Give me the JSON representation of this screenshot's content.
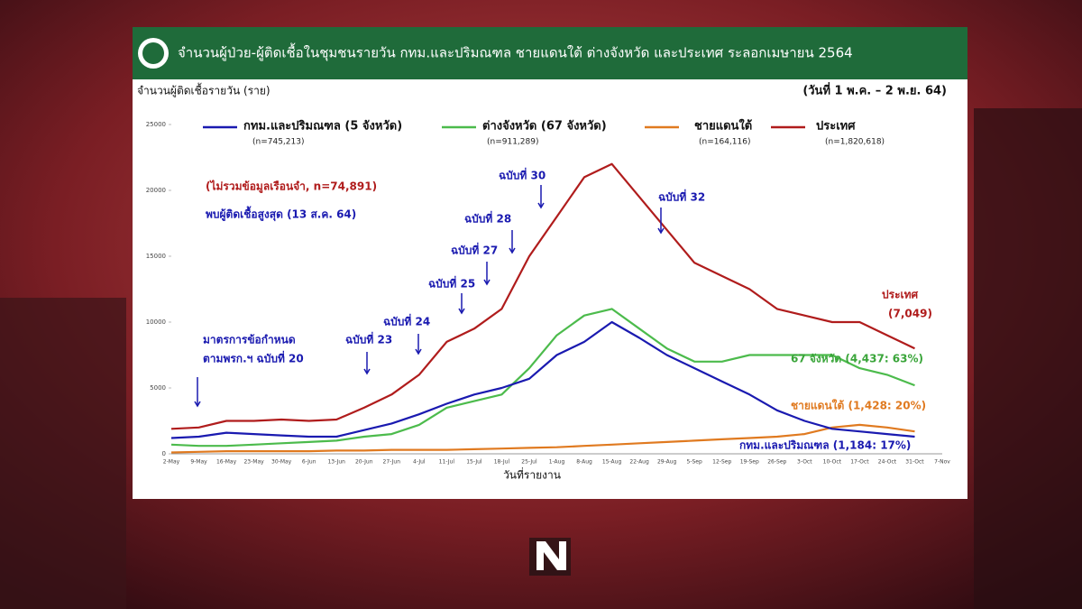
{
  "chart_data": {
    "type": "line",
    "title": "จำนวนผู้ป่วย-ผู้ติดเชื้อในชุมชนรายวัน กทม.และปริมณฑล ชายแดนใต้ ต่างจังหวัด และประเทศ ระลอกเมษายน 2564",
    "ylabel": "จำนวนผู้ติดเชื้อรายวัน (ราย)",
    "subtitle": "(วันที่ 1 พ.ค. – 2 พ.ย. 64)",
    "xlabel": "วันที่รายงาน",
    "categories": [
      "2-May",
      "9-May",
      "16-May",
      "23-May",
      "30-May",
      "6-Jun",
      "13-Jun",
      "20-Jun",
      "27-Jun",
      "4-Jul",
      "11-Jul",
      "15-Jul",
      "18-Jul",
      "25-Jul",
      "1-Aug",
      "8-Aug",
      "15-Aug",
      "22-Aug",
      "29-Aug",
      "5-Sep",
      "12-Sep",
      "19-Sep",
      "26-Sep",
      "3-Oct",
      "10-Oct",
      "17-Oct",
      "24-Oct",
      "31-Oct",
      "7-Nov"
    ],
    "ylim": [
      0,
      25000
    ],
    "yticks": [
      0,
      5000,
      10000,
      15000,
      20000,
      25000
    ],
    "series": [
      {
        "name": "กทม.และปริมณฑล (5 จังหวัด)",
        "n": "(n=745,213)",
        "color": "#1a1ab0",
        "values": [
          1200,
          1300,
          1600,
          1500,
          1400,
          1300,
          1300,
          1800,
          2300,
          3000,
          3800,
          4500,
          5000,
          5700,
          7500,
          8500,
          10000,
          8800,
          7500,
          6500,
          5500,
          4500,
          3300,
          2500,
          1900,
          1700,
          1500,
          1300,
          null
        ]
      },
      {
        "name": "ต่างจังหวัด (67 จังหวัด)",
        "n": "(n=911,289)",
        "color": "#4cbb4c",
        "values": [
          700,
          600,
          600,
          700,
          800,
          900,
          1000,
          1300,
          1500,
          2200,
          3500,
          4000,
          4500,
          6500,
          9000,
          10500,
          11000,
          9500,
          8000,
          7000,
          7000,
          7500,
          7500,
          7500,
          7500,
          6500,
          6000,
          5200,
          null
        ]
      },
      {
        "name": "ชายแดนใต้",
        "n": "(n=164,116)",
        "color": "#e07a20",
        "values": [
          100,
          150,
          200,
          200,
          200,
          200,
          250,
          250,
          300,
          300,
          300,
          350,
          400,
          450,
          500,
          600,
          700,
          800,
          900,
          1000,
          1100,
          1200,
          1300,
          1500,
          2000,
          2200,
          2000,
          1700,
          null
        ]
      },
      {
        "name": "ประเทศ",
        "n": "(n=1,820,618)",
        "color": "#b01c1c",
        "values": [
          1900,
          2000,
          2500,
          2500,
          2600,
          2500,
          2600,
          3500,
          4500,
          6000,
          8500,
          9500,
          11000,
          15000,
          18000,
          21000,
          22000,
          19500,
          17000,
          14500,
          13500,
          12500,
          11000,
          10500,
          10000,
          10000,
          9000,
          8000,
          null
        ]
      }
    ],
    "annotations": [
      "(ไม่รวมข้อมูลเรือนจำ, n=74,891)",
      "พบผู้ติดเชื้อสูงสุด (13 ส.ค. 64)",
      "มาตรการข้อกำหนด",
      "ตามพรก.ฯ ฉบับที่ 20",
      "ฉบับที่ 23",
      "ฉบับที่ 24",
      "ฉบับที่ 25",
      "ฉบับที่ 27",
      "ฉบับที่ 28",
      "ฉบับที่ 30",
      "ฉบับที่ 32"
    ],
    "end_labels": [
      "ประเทศ",
      "(7,049)",
      "67 จังหวัด (4,437: 63%)",
      "ชายแดนใต้ (1,428: 20%)",
      "กทม.และปริมณฑล (1,184: 17%)"
    ]
  }
}
